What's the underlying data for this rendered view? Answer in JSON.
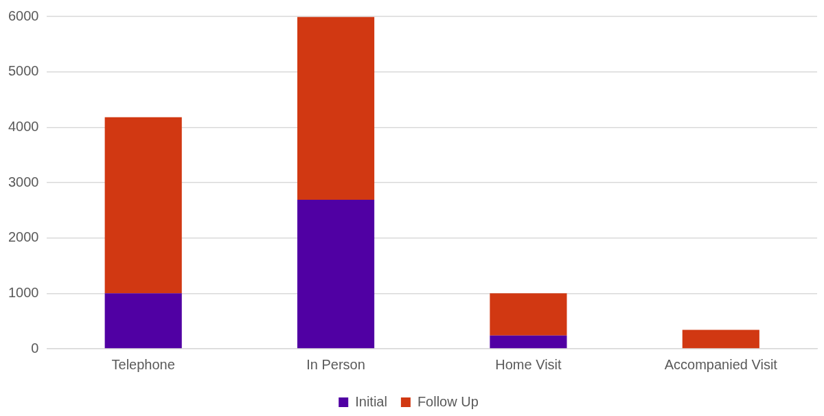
{
  "chart_data": {
    "type": "bar",
    "stacked": true,
    "categories": [
      "Telephone",
      "In Person",
      "Home Visit",
      "Accompanied Visit"
    ],
    "series": [
      {
        "name": "Initial",
        "color": "#5000a3",
        "values": [
          1000,
          2690,
          240,
          0
        ]
      },
      {
        "name": "Follow Up",
        "color": "#d13812",
        "values": [
          3180,
          3300,
          760,
          340
        ]
      }
    ],
    "ylim": [
      0,
      6000
    ],
    "yticks": [
      0,
      1000,
      2000,
      3000,
      4000,
      5000,
      6000
    ],
    "grid": "y",
    "legend": "bottom"
  }
}
